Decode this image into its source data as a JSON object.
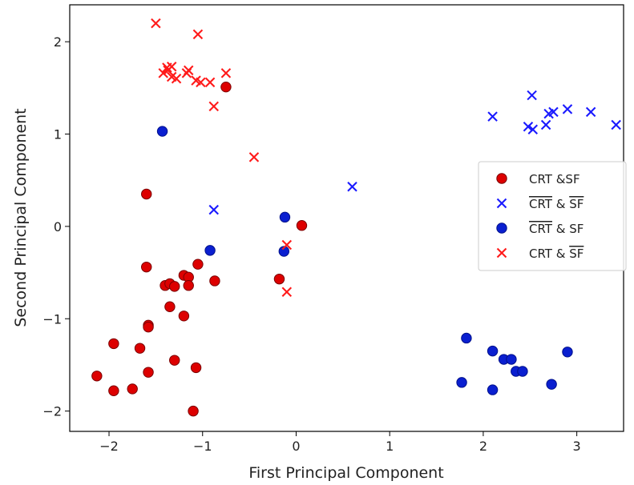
{
  "chart_data": {
    "type": "scatter",
    "title": "",
    "xlabel": "First Principal Component",
    "ylabel": "Second Principal Component",
    "xlim": [
      -2.42,
      3.5
    ],
    "ylim": [
      -2.22,
      2.4
    ],
    "xticks": [
      -2,
      -1,
      0,
      1,
      2,
      3
    ],
    "yticks": [
      -2,
      -1,
      0,
      1,
      2
    ],
    "grid": false,
    "legend_placement": "center-right",
    "series": [
      {
        "name": "CRT &SF",
        "label_parts": [
          {
            "text": "CRT &SF",
            "overline": false
          }
        ],
        "marker": "circle",
        "color": "#dd0000",
        "edge_color": "#7a0000",
        "points": [
          [
            -0.75,
            1.51
          ],
          [
            -1.6,
            0.35
          ],
          [
            0.06,
            0.01
          ],
          [
            -0.18,
            -0.57
          ],
          [
            -1.6,
            -0.44
          ],
          [
            -1.05,
            -0.41
          ],
          [
            -1.2,
            -0.53
          ],
          [
            -1.15,
            -0.55
          ],
          [
            -0.87,
            -0.59
          ],
          [
            -1.4,
            -0.64
          ],
          [
            -1.35,
            -0.62
          ],
          [
            -1.3,
            -0.65
          ],
          [
            -1.15,
            -0.64
          ],
          [
            -1.35,
            -0.87
          ],
          [
            -1.2,
            -0.97
          ],
          [
            -1.58,
            -1.07
          ],
          [
            -1.58,
            -1.09
          ],
          [
            -1.95,
            -1.27
          ],
          [
            -1.67,
            -1.32
          ],
          [
            -1.3,
            -1.45
          ],
          [
            -1.07,
            -1.53
          ],
          [
            -1.58,
            -1.58
          ],
          [
            -2.13,
            -1.62
          ],
          [
            -1.75,
            -1.76
          ],
          [
            -1.95,
            -1.78
          ],
          [
            -1.1,
            -2.0
          ]
        ]
      },
      {
        "name": "CRT & SF (both overlined)",
        "label_parts": [
          {
            "text": "CRT",
            "overline": true
          },
          {
            "text": " & ",
            "overline": false
          },
          {
            "text": "SF",
            "overline": true
          }
        ],
        "marker": "x",
        "color": "#1a1aff",
        "points": [
          [
            2.52,
            1.42
          ],
          [
            2.9,
            1.27
          ],
          [
            3.15,
            1.24
          ],
          [
            2.75,
            1.24
          ],
          [
            2.7,
            1.22
          ],
          [
            2.1,
            1.19
          ],
          [
            2.48,
            1.08
          ],
          [
            2.53,
            1.05
          ],
          [
            2.67,
            1.1
          ],
          [
            3.42,
            1.1
          ],
          [
            0.6,
            0.43
          ],
          [
            -0.88,
            0.18
          ]
        ]
      },
      {
        "name": "CRT & SF (CRT overlined)",
        "label_parts": [
          {
            "text": "CRT",
            "overline": true
          },
          {
            "text": " & SF",
            "overline": false
          }
        ],
        "marker": "circle",
        "color": "#0a1fd0",
        "edge_color": "#00108a",
        "points": [
          [
            -1.43,
            1.03
          ],
          [
            -0.12,
            0.1
          ],
          [
            -0.92,
            -0.26
          ],
          [
            -0.13,
            -0.27
          ],
          [
            1.82,
            -1.21
          ],
          [
            2.1,
            -1.35
          ],
          [
            2.9,
            -1.36
          ],
          [
            2.22,
            -1.44
          ],
          [
            2.3,
            -1.44
          ],
          [
            2.35,
            -1.57
          ],
          [
            2.42,
            -1.57
          ],
          [
            1.77,
            -1.69
          ],
          [
            2.73,
            -1.71
          ],
          [
            2.1,
            -1.77
          ]
        ]
      },
      {
        "name": "CRT & SF (SF overlined)",
        "label_parts": [
          {
            "text": "CRT & ",
            "overline": false
          },
          {
            "text": "SF",
            "overline": true
          }
        ],
        "marker": "x",
        "color": "#ff1a1a",
        "points": [
          [
            -1.5,
            2.2
          ],
          [
            -1.05,
            2.08
          ],
          [
            -1.38,
            1.72
          ],
          [
            -1.33,
            1.73
          ],
          [
            -1.42,
            1.66
          ],
          [
            -1.37,
            1.69
          ],
          [
            -1.17,
            1.66
          ],
          [
            -1.15,
            1.69
          ],
          [
            -0.75,
            1.66
          ],
          [
            -1.33,
            1.62
          ],
          [
            -1.28,
            1.6
          ],
          [
            -1.07,
            1.58
          ],
          [
            -1.02,
            1.56
          ],
          [
            -0.92,
            1.56
          ],
          [
            -0.88,
            1.3
          ],
          [
            -0.45,
            0.75
          ],
          [
            -0.1,
            -0.2
          ],
          [
            -0.1,
            -0.71
          ]
        ]
      }
    ]
  }
}
